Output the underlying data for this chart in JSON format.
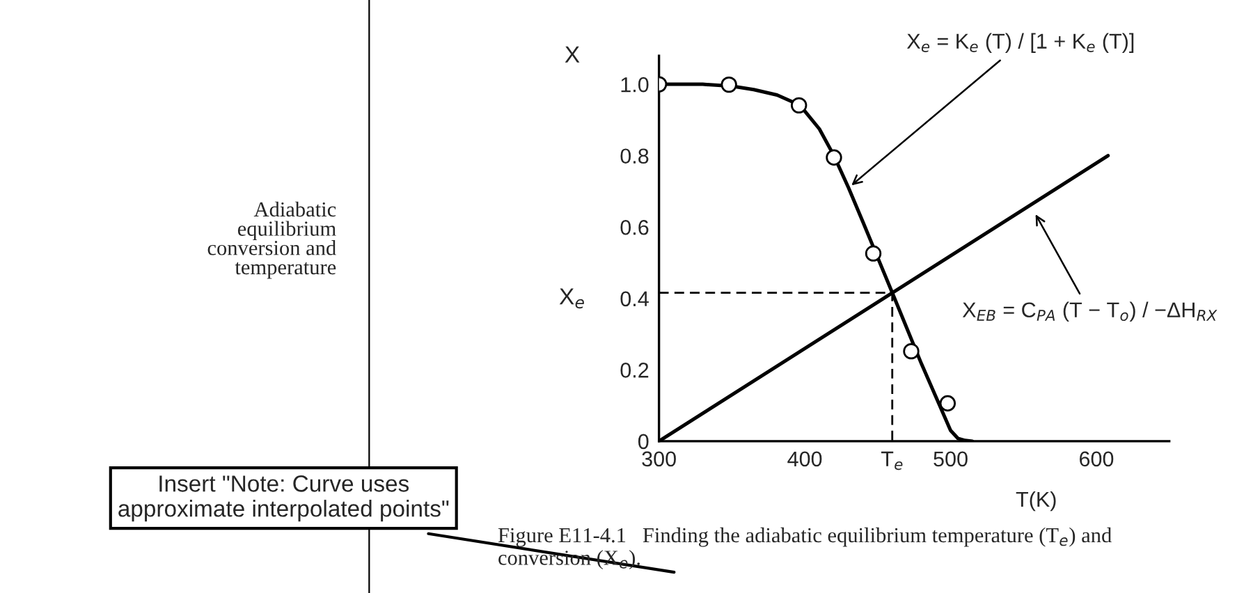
{
  "chart_data": {
    "type": "line",
    "xlabel": "T(K)",
    "ylabel": "X",
    "xlim": [
      300,
      650
    ],
    "ylim": [
      0,
      1.08
    ],
    "xticks": [
      300,
      400,
      {
        "value": 460,
        "label": "T$_{e}$"
      },
      500,
      600
    ],
    "yticks": [
      0,
      0.2,
      0.4,
      0.6,
      0.8,
      {
        "value": 1,
        "label": "1.0"
      }
    ],
    "grid": false,
    "legend": false,
    "series": [
      {
        "color": "#000000",
        "marker": "none",
        "line_style": "solid",
        "x": [
          300,
          330,
          350,
          365,
          381,
          392,
          400,
          410,
          420,
          430,
          440,
          460,
          480,
          500,
          505,
          510,
          515
        ],
        "values": [
          1.0,
          1.0,
          0.995,
          0.985,
          0.97,
          0.95,
          0.925,
          0.875,
          0.8,
          0.71,
          0.613,
          0.416,
          0.217,
          0.03,
          0.008,
          0.002,
          0
        ]
      },
      {
        "type": "scatter",
        "color": "#000000",
        "marker": "circle",
        "x": [
          300,
          348,
          396,
          420,
          447,
          473,
          498
        ],
        "values": [
          1.0,
          0.999,
          0.941,
          0.795,
          0.526,
          0.252,
          0.106
        ]
      },
      {
        "color": "#000000",
        "marker": "none",
        "line_style": "solid",
        "x": [
          300,
          608
        ],
        "values": [
          0,
          0.8
        ]
      },
      {
        "color": "#000000",
        "marker": "none",
        "line_style": "dashed",
        "x": [
          300,
          460,
          460
        ],
        "values": [
          0.416,
          0.416,
          0
        ]
      }
    ],
    "annotations": [
      {
        "text": "X$_{e}$ = K$_{e}$ (T) / [1 + K$_{e}$ (T)]",
        "x": 430,
        "y": 0.71
      },
      {
        "text": "X$_{EB}$ = C$_{PA}$ (T − T$_{o}$) / −ΔH$_{RX}$",
        "x": 557,
        "y": 0.645
      },
      "X$_{e}$",
      "Adiabatic\nequilibrium\nconversion and\ntemperature",
      "Figure E11-4.1   Finding the adiabatic equilibrium temperature (T$_{e}$) and\nconversion (X$_{e}$).",
      "Insert \"Note: Curve uses\napproximate interpolated points\""
    ]
  }
}
